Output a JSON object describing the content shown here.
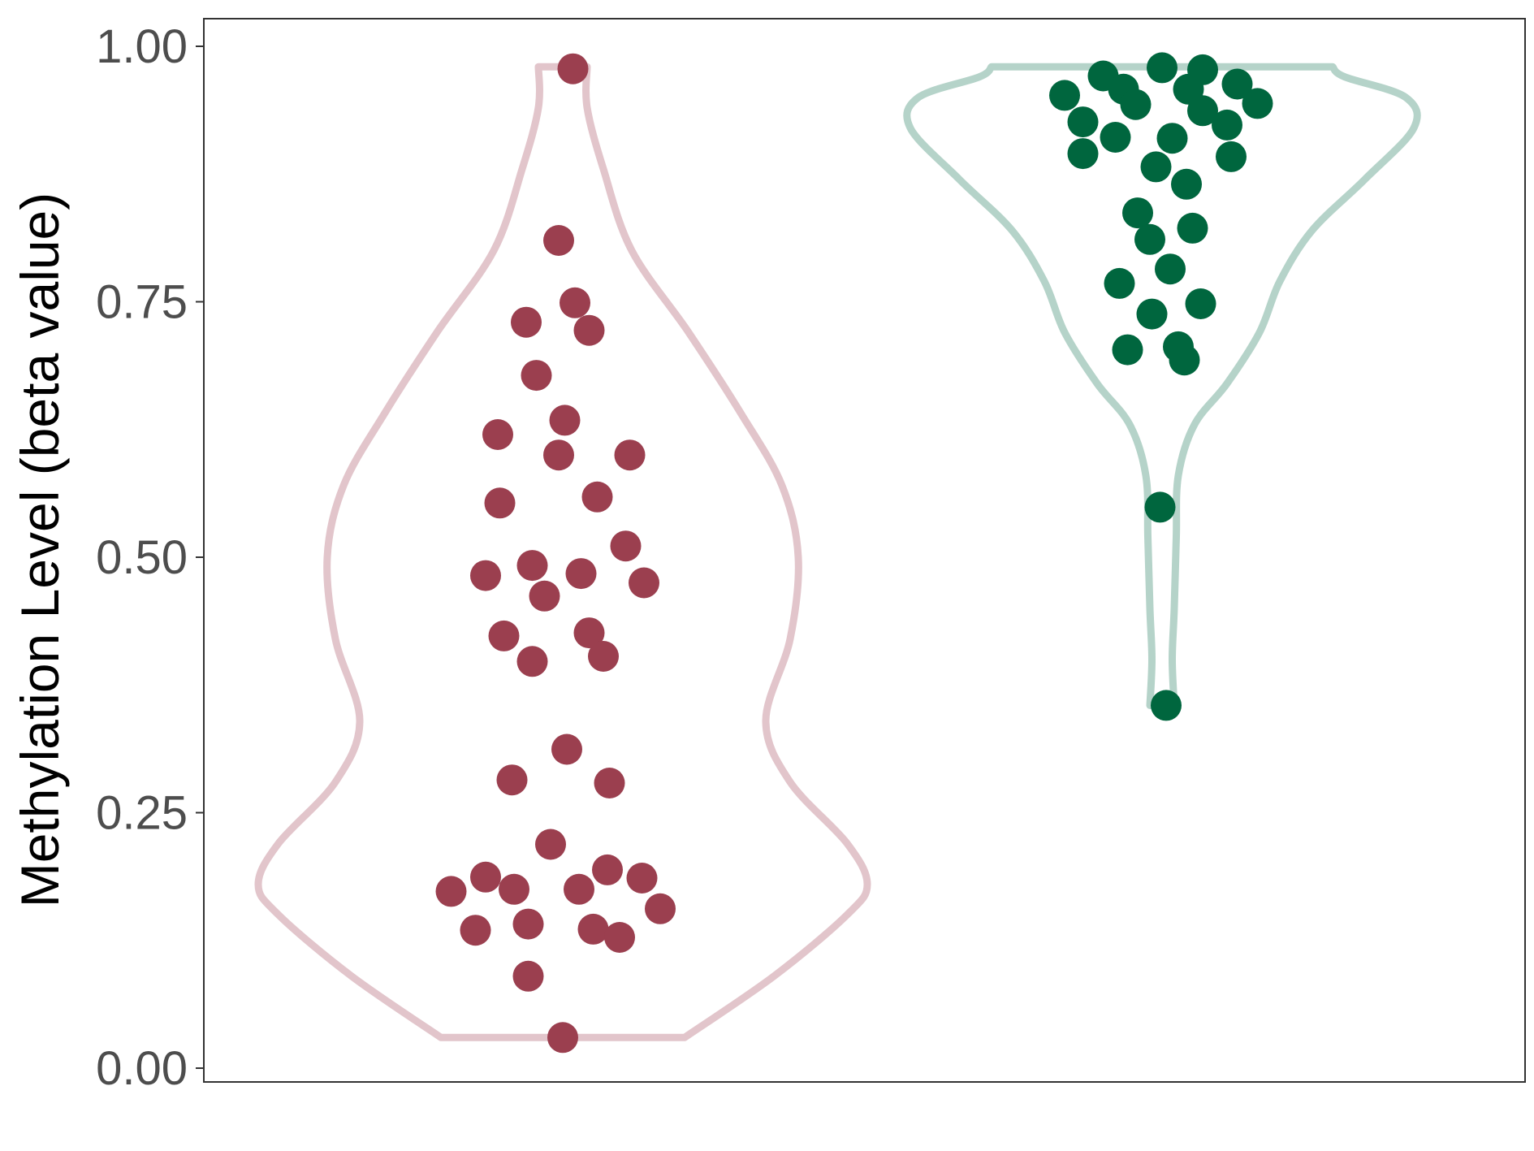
{
  "chart_data": {
    "type": "violin",
    "ylabel": "Methylation Level (beta value)",
    "xlabel": "",
    "ylim": [
      0,
      1
    ],
    "yticks": [
      0.0,
      0.25,
      0.5,
      0.75,
      1.0
    ],
    "ytick_labels": [
      "0.00",
      "0.25",
      "0.50",
      "0.75",
      "1.00"
    ],
    "grid": false,
    "legend": "none",
    "series": [
      {
        "outline_color": "#e2c5cb",
        "point_color": "#9b3f4f",
        "range": [
          0.03,
          0.98
        ],
        "density": [
          [
            0.03,
            0.3
          ],
          [
            0.09,
            0.52
          ],
          [
            0.15,
            0.7
          ],
          [
            0.18,
            0.75
          ],
          [
            0.22,
            0.7
          ],
          [
            0.28,
            0.56
          ],
          [
            0.34,
            0.5
          ],
          [
            0.42,
            0.56
          ],
          [
            0.5,
            0.58
          ],
          [
            0.57,
            0.54
          ],
          [
            0.64,
            0.44
          ],
          [
            0.72,
            0.31
          ],
          [
            0.8,
            0.17
          ],
          [
            0.88,
            0.1
          ],
          [
            0.94,
            0.06
          ],
          [
            0.98,
            0.06
          ]
        ],
        "points": [
          [
            -0.275,
            0.173
          ],
          [
            -0.215,
            0.135
          ],
          [
            -0.19,
            0.187
          ],
          [
            -0.12,
            0.175
          ],
          [
            -0.085,
            0.141
          ],
          [
            -0.085,
            0.09
          ],
          [
            -0.03,
            0.219
          ],
          [
            0.0,
            0.03
          ],
          [
            0.04,
            0.175
          ],
          [
            0.075,
            0.136
          ],
          [
            0.11,
            0.194
          ],
          [
            0.14,
            0.128
          ],
          [
            0.195,
            0.186
          ],
          [
            0.24,
            0.156
          ],
          [
            -0.125,
            0.282
          ],
          [
            0.01,
            0.312
          ],
          [
            0.115,
            0.279
          ],
          [
            -0.145,
            0.423
          ],
          [
            -0.075,
            0.398
          ],
          [
            0.065,
            0.426
          ],
          [
            0.1,
            0.403
          ],
          [
            -0.19,
            0.482
          ],
          [
            -0.075,
            0.492
          ],
          [
            -0.045,
            0.462
          ],
          [
            0.045,
            0.484
          ],
          [
            0.155,
            0.511
          ],
          [
            0.2,
            0.475
          ],
          [
            -0.155,
            0.553
          ],
          [
            0.085,
            0.559
          ],
          [
            -0.16,
            0.62
          ],
          [
            -0.01,
            0.6
          ],
          [
            0.005,
            0.634
          ],
          [
            0.165,
            0.6
          ],
          [
            -0.09,
            0.73
          ],
          [
            -0.065,
            0.678
          ],
          [
            0.03,
            0.749
          ],
          [
            0.065,
            0.722
          ],
          [
            -0.01,
            0.81
          ],
          [
            0.025,
            0.978
          ]
        ]
      },
      {
        "outline_color": "#b5d3c9",
        "point_color": "#00663e",
        "range": [
          0.355,
          0.98
        ],
        "density": [
          [
            0.355,
            0.03
          ],
          [
            0.4,
            0.025
          ],
          [
            0.45,
            0.03
          ],
          [
            0.52,
            0.035
          ],
          [
            0.58,
            0.04
          ],
          [
            0.63,
            0.08
          ],
          [
            0.67,
            0.16
          ],
          [
            0.72,
            0.24
          ],
          [
            0.77,
            0.29
          ],
          [
            0.82,
            0.37
          ],
          [
            0.87,
            0.5
          ],
          [
            0.92,
            0.62
          ],
          [
            0.95,
            0.6
          ],
          [
            0.97,
            0.45
          ],
          [
            0.98,
            0.42
          ]
        ],
        "points": [
          [
            0.01,
            0.355
          ],
          [
            -0.005,
            0.549
          ],
          [
            -0.085,
            0.703
          ],
          [
            -0.025,
            0.738
          ],
          [
            0.04,
            0.706
          ],
          [
            0.055,
            0.693
          ],
          [
            -0.105,
            0.768
          ],
          [
            0.02,
            0.782
          ],
          [
            0.095,
            0.748
          ],
          [
            -0.06,
            0.837
          ],
          [
            -0.03,
            0.811
          ],
          [
            0.075,
            0.822
          ],
          [
            -0.015,
            0.882
          ],
          [
            0.06,
            0.865
          ],
          [
            -0.24,
            0.952
          ],
          [
            -0.195,
            0.926
          ],
          [
            -0.195,
            0.895
          ],
          [
            -0.145,
            0.971
          ],
          [
            -0.115,
            0.911
          ],
          [
            -0.095,
            0.958
          ],
          [
            -0.065,
            0.943
          ],
          [
            0.0,
            0.979
          ],
          [
            0.025,
            0.91
          ],
          [
            0.065,
            0.958
          ],
          [
            0.1,
            0.977
          ],
          [
            0.1,
            0.937
          ],
          [
            0.16,
            0.923
          ],
          [
            0.17,
            0.892
          ],
          [
            0.185,
            0.963
          ],
          [
            0.235,
            0.944
          ]
        ]
      }
    ]
  }
}
